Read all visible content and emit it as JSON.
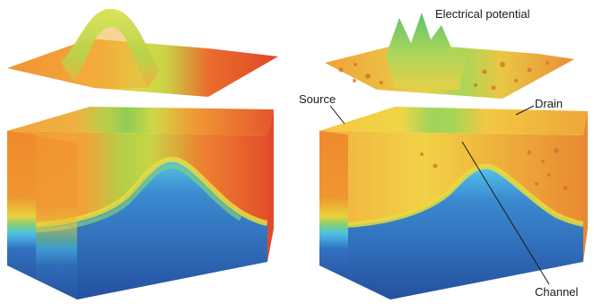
{
  "labels": {
    "electrical_potential": "Electrical potential",
    "source": "Source",
    "drain": "Drain",
    "channel": "Channel"
  },
  "colors": {
    "orange": "#f08a2c",
    "red_orange": "#e4502a",
    "yellow": "#e9e23a",
    "green": "#8fcc55",
    "cyan": "#5ec8e8",
    "blue": "#2f64b0",
    "dark_blue": "#1d3f8f"
  }
}
